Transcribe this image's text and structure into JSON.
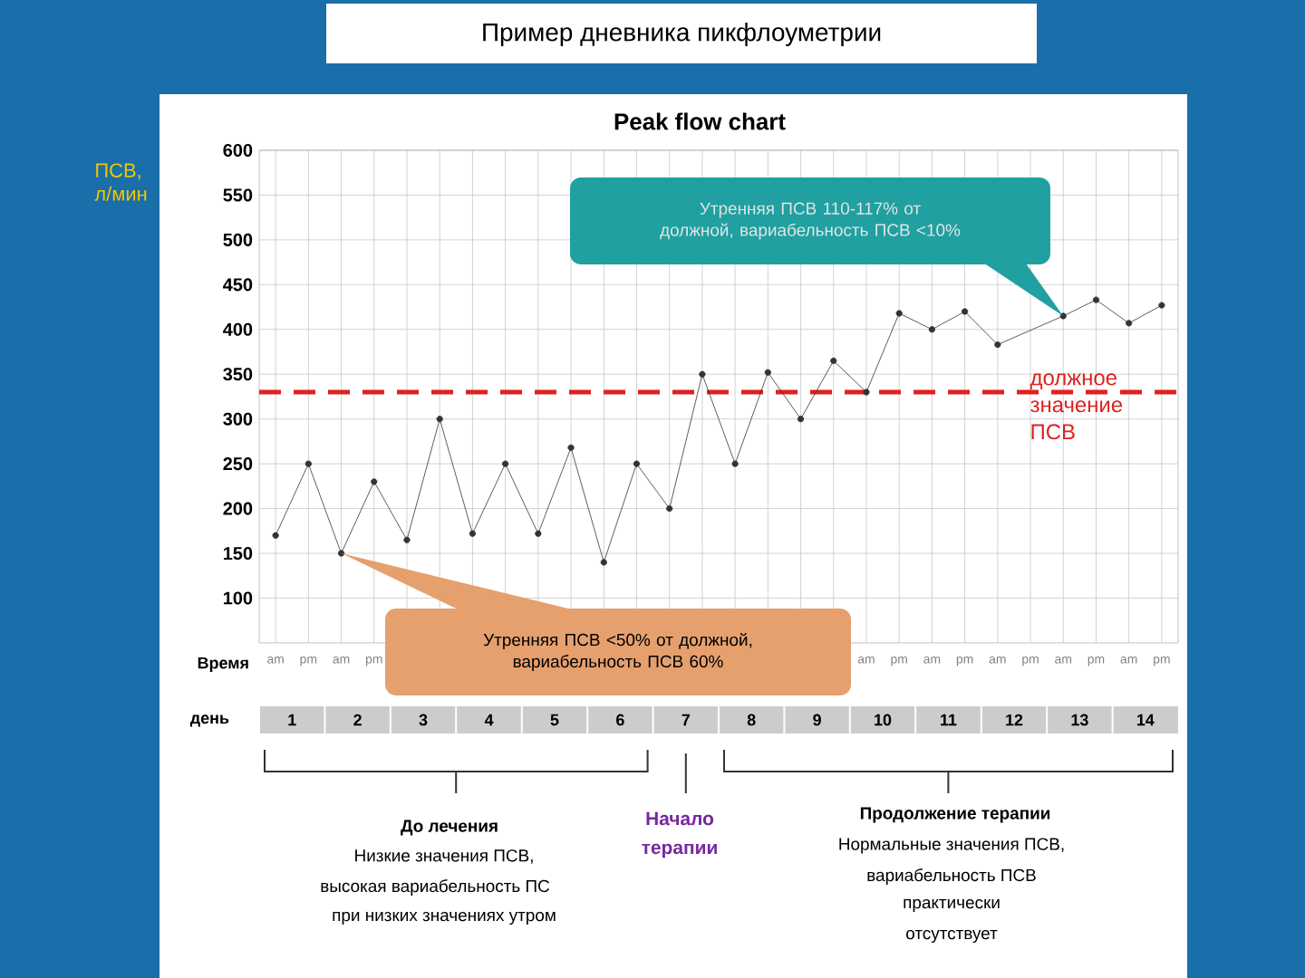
{
  "chart_data": {
    "type": "line",
    "title": "Пример дневника пикфлоуметрии",
    "subtitle": "Peak flow chart",
    "categories": [
      "am",
      "pm",
      "am",
      "pm",
      null,
      null,
      null,
      null,
      null,
      null,
      null,
      null,
      null,
      null,
      null,
      null,
      null,
      null,
      "am",
      "pm",
      "am",
      "pm",
      "am",
      "pm",
      "am",
      "pm",
      "am",
      "pm"
    ],
    "series": [
      {
        "color": "#333333",
        "values": [
          170,
          250,
          150,
          230,
          165,
          300,
          172,
          250,
          172,
          268,
          140,
          250,
          200,
          350,
          250,
          352,
          300,
          365,
          330,
          418,
          400,
          420,
          383,
          null,
          415,
          433,
          407,
          427
        ]
      }
    ],
    "ylim": [
      50,
      600
    ],
    "yticks": [
      100,
      150,
      200,
      250,
      300,
      350,
      400,
      450,
      500,
      550,
      600
    ],
    "grid": true,
    "marker": "circle",
    "line_style": "solid",
    "ref_lines": [
      {
        "axis": "y",
        "value": 330,
        "label": "должное значение ПСВ",
        "color": "#e02020",
        "line_style": "dashed"
      }
    ],
    "annotations": [
      "Время",
      "день",
      "1",
      "2",
      "3",
      "4",
      "5",
      "6",
      "7",
      "8",
      "9",
      "10",
      "11",
      "12",
      "13",
      "14",
      "Утренняя ПСВ 110-117% от должной, вариабельность ПСВ <10%",
      "Утренняя ПСВ <50% от должной, вариабельность ПСВ 60%",
      "До лечения",
      "Низкие значения ПСВ,",
      "высокая вариабельность ПС",
      "при низких значениях утром",
      "Начало терапии",
      "Продолжение терапии",
      "Нормальные значения ПСВ,",
      "вариабельность ПСВ",
      "практически",
      "отсутствует",
      "ПСВ, л/мин"
    ]
  }
}
